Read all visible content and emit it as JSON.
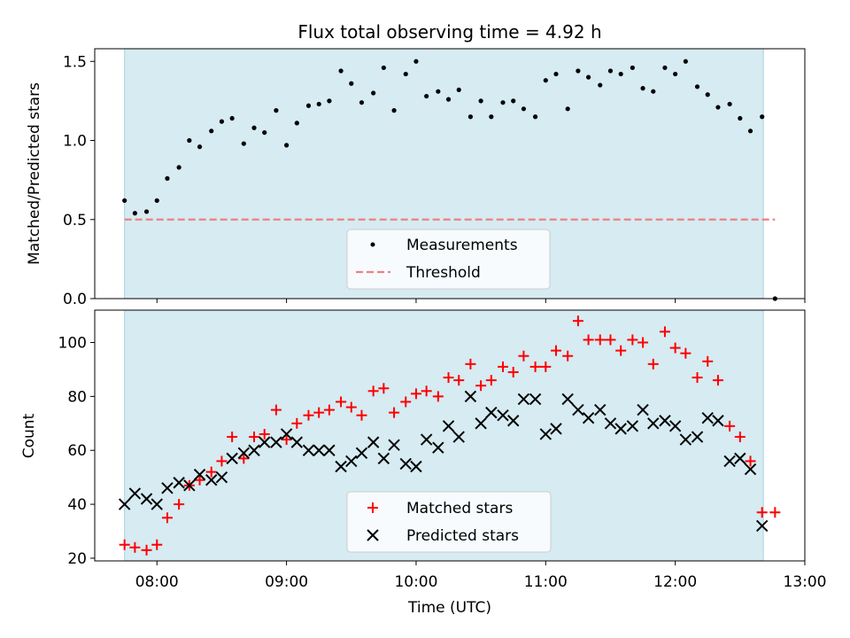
{
  "chart_data": [
    {
      "type": "scatter",
      "title": "Flux total observing time = 4.92 h",
      "xlabel": "",
      "ylabel": "Matched/Predicted stars",
      "xlim": [
        7.52,
        13.0
      ],
      "ylim": [
        0.0,
        1.58
      ],
      "yticks": [
        0.0,
        0.5,
        1.0,
        1.5
      ],
      "ytick_labels": [
        "0.0",
        "0.5",
        "1.0",
        "1.5"
      ],
      "shaded_span": [
        7.75,
        12.68
      ],
      "threshold": {
        "y": 0.5,
        "x": [
          7.75,
          12.77
        ],
        "color": "#f08080"
      },
      "legend": {
        "placement": "lower-center",
        "entries": [
          "Measurements",
          "Threshold"
        ]
      },
      "series": [
        {
          "name": "Measurements",
          "color": "#000000",
          "x": [
            7.75,
            7.83,
            7.92,
            8.0,
            8.08,
            8.17,
            8.25,
            8.33,
            8.42,
            8.5,
            8.58,
            8.67,
            8.75,
            8.83,
            8.92,
            9.0,
            9.08,
            9.17,
            9.25,
            9.33,
            9.42,
            9.5,
            9.58,
            9.67,
            9.75,
            9.83,
            9.92,
            10.0,
            10.08,
            10.17,
            10.25,
            10.33,
            10.42,
            10.5,
            10.58,
            10.67,
            10.75,
            10.83,
            10.92,
            11.0,
            11.08,
            11.17,
            11.25,
            11.33,
            11.42,
            11.5,
            11.58,
            11.67,
            11.75,
            11.83,
            11.92,
            12.0,
            12.08,
            12.17,
            12.25,
            12.33,
            12.42,
            12.5,
            12.58,
            12.67,
            12.77
          ],
          "y": [
            0.62,
            0.54,
            0.55,
            0.62,
            0.76,
            0.83,
            1.0,
            0.96,
            1.06,
            1.12,
            1.14,
            0.98,
            1.08,
            1.05,
            1.19,
            0.97,
            1.11,
            1.22,
            1.23,
            1.25,
            1.44,
            1.36,
            1.24,
            1.3,
            1.46,
            1.19,
            1.42,
            1.5,
            1.28,
            1.31,
            1.26,
            1.32,
            1.15,
            1.25,
            1.15,
            1.24,
            1.25,
            1.2,
            1.15,
            1.38,
            1.42,
            1.2,
            1.44,
            1.4,
            1.35,
            1.44,
            1.42,
            1.46,
            1.33,
            1.31,
            1.46,
            1.42,
            1.5,
            1.34,
            1.29,
            1.21,
            1.23,
            1.14,
            1.06,
            1.15,
            0.0
          ]
        }
      ]
    },
    {
      "type": "scatter",
      "title": "",
      "xlabel": "Time (UTC)",
      "ylabel": "Count",
      "xlim": [
        7.52,
        13.0
      ],
      "ylim": [
        19,
        112
      ],
      "xticks": [
        8,
        9,
        10,
        11,
        12,
        13
      ],
      "xtick_labels": [
        "08:00",
        "09:00",
        "10:00",
        "11:00",
        "12:00",
        "13:00"
      ],
      "yticks": [
        20,
        40,
        60,
        80,
        100
      ],
      "ytick_labels": [
        "20",
        "40",
        "60",
        "80",
        "100"
      ],
      "shaded_span": [
        7.75,
        12.68
      ],
      "legend": {
        "placement": "lower-center",
        "entries": [
          "Matched stars",
          "Predicted stars"
        ]
      },
      "series": [
        {
          "name": "Matched stars",
          "marker": "plus",
          "color": "#ff0000",
          "x": [
            7.75,
            7.83,
            7.92,
            8.0,
            8.08,
            8.17,
            8.25,
            8.33,
            8.42,
            8.5,
            8.58,
            8.67,
            8.75,
            8.83,
            8.92,
            9.0,
            9.08,
            9.17,
            9.25,
            9.33,
            9.42,
            9.5,
            9.58,
            9.67,
            9.75,
            9.83,
            9.92,
            10.0,
            10.08,
            10.17,
            10.25,
            10.33,
            10.42,
            10.5,
            10.58,
            10.67,
            10.75,
            10.83,
            10.92,
            11.0,
            11.08,
            11.17,
            11.25,
            11.33,
            11.42,
            11.5,
            11.58,
            11.67,
            11.75,
            11.83,
            11.92,
            12.0,
            12.08,
            12.17,
            12.25,
            12.33,
            12.42,
            12.5,
            12.58,
            12.67,
            12.77
          ],
          "y": [
            25,
            24,
            23,
            25,
            35,
            40,
            47,
            49,
            52,
            56,
            65,
            57,
            65,
            66,
            75,
            64,
            70,
            73,
            74,
            75,
            78,
            76,
            73,
            82,
            83,
            74,
            78,
            81,
            82,
            80,
            87,
            86,
            92,
            84,
            86,
            91,
            89,
            95,
            91,
            91,
            97,
            95,
            108,
            101,
            101,
            101,
            97,
            101,
            100,
            92,
            104,
            98,
            96,
            87,
            93,
            86,
            69,
            65,
            56,
            37,
            37
          ]
        },
        {
          "name": "Predicted stars",
          "marker": "x",
          "color": "#000000",
          "x": [
            7.75,
            7.83,
            7.92,
            8.0,
            8.08,
            8.17,
            8.25,
            8.33,
            8.42,
            8.5,
            8.58,
            8.67,
            8.75,
            8.83,
            8.92,
            9.0,
            9.08,
            9.17,
            9.25,
            9.33,
            9.42,
            9.5,
            9.58,
            9.67,
            9.75,
            9.83,
            9.92,
            10.0,
            10.08,
            10.17,
            10.25,
            10.33,
            10.42,
            10.5,
            10.58,
            10.67,
            10.75,
            10.83,
            10.92,
            11.0,
            11.08,
            11.17,
            11.25,
            11.33,
            11.42,
            11.5,
            11.58,
            11.67,
            11.75,
            11.83,
            11.92,
            12.0,
            12.08,
            12.17,
            12.25,
            12.33,
            12.42,
            12.5,
            12.58,
            12.67
          ],
          "y": [
            40,
            44,
            42,
            40,
            46,
            48,
            47,
            51,
            49,
            50,
            57,
            59,
            60,
            63,
            63,
            66,
            63,
            60,
            60,
            60,
            54,
            56,
            59,
            63,
            57,
            62,
            55,
            54,
            64,
            61,
            69,
            65,
            80,
            70,
            74,
            73,
            71,
            79,
            79,
            66,
            68,
            79,
            75,
            72,
            75,
            70,
            68,
            69,
            75,
            70,
            71,
            69,
            64,
            65,
            72,
            71,
            56,
            57,
            53,
            32
          ]
        }
      ]
    }
  ]
}
